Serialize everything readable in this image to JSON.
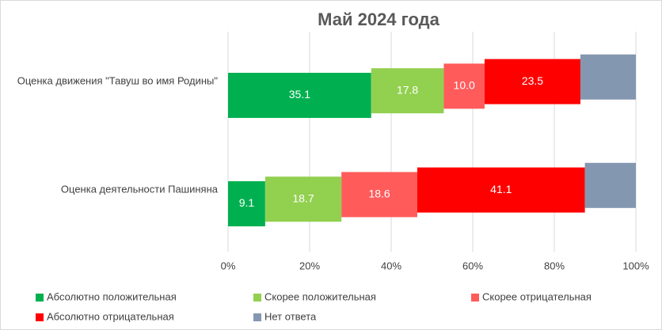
{
  "chart_data": {
    "type": "stacked-bar-horizontal",
    "title": "Май 2024 года",
    "categories": [
      "Оценка движения \"Тавуш во имя Родины\"",
      "Оценка деятельности Пашиняна"
    ],
    "series": [
      {
        "name": "Абсолютно положительная",
        "color": "#00b050",
        "values": [
          35.1,
          9.1
        ],
        "value_labels": [
          "35.1",
          "9.1"
        ]
      },
      {
        "name": "Скорее положительная",
        "color": "#92d050",
        "values": [
          17.8,
          18.7
        ],
        "value_labels": [
          "17.8",
          "18.7"
        ]
      },
      {
        "name": "Скорее отрицательная",
        "color": "#ff5b5b",
        "values": [
          10.0,
          18.6
        ],
        "value_labels": [
          "10.0",
          "18.6"
        ]
      },
      {
        "name": "Абсолютно отрицательная",
        "color": "#ff0000",
        "values": [
          23.5,
          41.1
        ],
        "value_labels": [
          "23.5",
          "41.1"
        ]
      },
      {
        "name": "Нет ответа",
        "color": "#8497b0",
        "values": [
          13.6,
          12.5
        ]
      }
    ],
    "xlim": [
      0,
      100
    ],
    "xticks": [
      {
        "value": 0,
        "label": "0%"
      },
      {
        "value": 20,
        "label": "20%"
      },
      {
        "value": 40,
        "label": "40%"
      },
      {
        "value": 60,
        "label": "60%"
      },
      {
        "value": 80,
        "label": "80%"
      },
      {
        "value": 100,
        "label": "100%"
      }
    ],
    "grid": true
  }
}
